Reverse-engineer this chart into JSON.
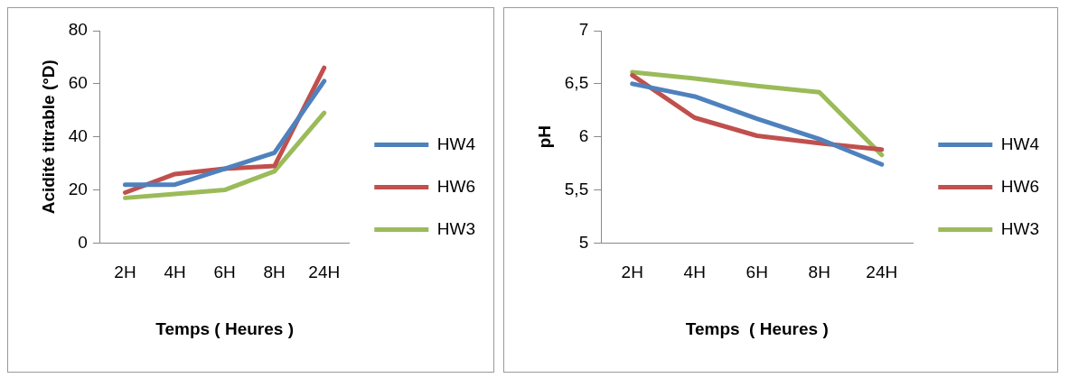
{
  "chart_data": [
    {
      "type": "line",
      "xlabel": "Temps ( Heures )",
      "ylabel": "Acidité titrable (°D)",
      "categories": [
        "2H",
        "4H",
        "6H",
        "8H",
        "24H"
      ],
      "ylim": [
        0,
        80
      ],
      "yticks": [
        0,
        20,
        40,
        60,
        80
      ],
      "legend": "right",
      "marker": "none",
      "line_style": "solid",
      "series": [
        {
          "name": "HW4",
          "color": "#4f81bd",
          "values": [
            22,
            22,
            28,
            34,
            61
          ]
        },
        {
          "name": "HW6",
          "color": "#c0504d",
          "values": [
            19,
            26,
            28,
            29,
            66
          ]
        },
        {
          "name": "HW3",
          "color": "#9bbb59",
          "values": [
            17,
            18.5,
            20,
            27,
            49
          ]
        }
      ]
    },
    {
      "type": "line",
      "xlabel": "Temps  ( Heures )",
      "ylabel": "pH",
      "categories": [
        "2H",
        "4H",
        "6H",
        "8H",
        "24H"
      ],
      "ylim": [
        5,
        7
      ],
      "yticks": [
        5,
        {
          "value": 5.5,
          "label": "5,5"
        },
        6,
        {
          "value": 6.5,
          "label": "6,5"
        },
        7
      ],
      "legend": "right",
      "marker": "none",
      "line_style": "solid",
      "series": [
        {
          "name": "HW4",
          "color": "#4f81bd",
          "values": [
            6.5,
            6.38,
            6.17,
            5.98,
            5.74
          ]
        },
        {
          "name": "HW6",
          "color": "#c0504d",
          "values": [
            6.58,
            6.18,
            6.01,
            5.94,
            5.88
          ]
        },
        {
          "name": "HW3",
          "color": "#9bbb59",
          "values": [
            6.61,
            6.55,
            6.48,
            6.42,
            5.83
          ]
        }
      ]
    }
  ]
}
